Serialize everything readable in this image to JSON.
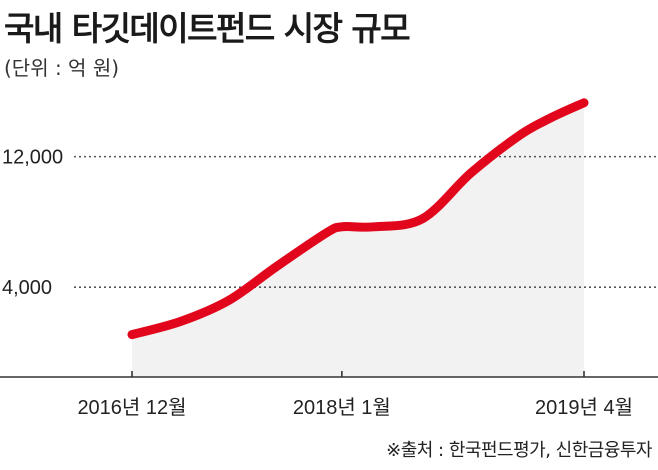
{
  "title": "국내 타깃데이트펀드 시장 규모",
  "unit_label": "(단위 : 억 원)",
  "source": "※출처 : 한국펀드평가, 신한금융투자",
  "colors": {
    "line": "#e1061c",
    "area": "#f2f2f2",
    "grid": "#555555",
    "axis": "#333333"
  },
  "chart_data": {
    "type": "area",
    "title": "국내 타깃데이트펀드 시장 규모",
    "ylabel": "(단위 : 억 원)",
    "xlabel": "",
    "x": [
      "2016-12",
      "2017-03",
      "2017-06",
      "2017-09",
      "2017-12",
      "2018-01",
      "2018-03",
      "2018-06",
      "2018-09",
      "2018-12",
      "2019-02",
      "2019-04"
    ],
    "values": [
      1100,
      1900,
      3200,
      5300,
      7300,
      7700,
      7700,
      8200,
      11000,
      13300,
      14400,
      15300
    ],
    "x_ticks": [
      "2016년 12월",
      "2018년 1월",
      "2019년 4월"
    ],
    "y_ticks": [
      {
        "value": 4000,
        "label": "4,000"
      },
      {
        "value": 12000,
        "label": "12,000"
      }
    ],
    "ylim": [
      -1500,
      17000
    ],
    "grid": "horizontal dotted at y ticks",
    "legend": "none"
  }
}
